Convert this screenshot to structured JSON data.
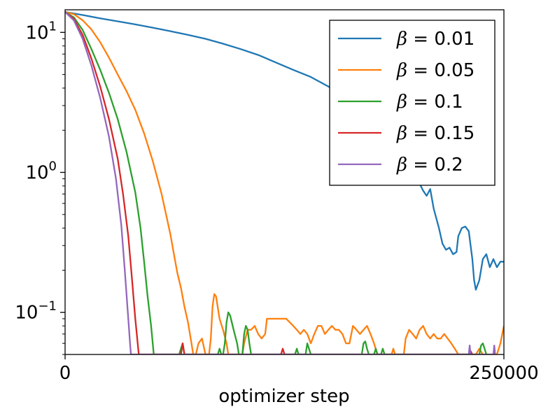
{
  "chart_data": {
    "type": "line",
    "title": "",
    "xlabel": "optimizer step",
    "ylabel": "",
    "xlim": [
      0,
      250000
    ],
    "ylim": [
      0.05,
      14.5
    ],
    "yscale": "log",
    "grid": false,
    "legend_position": "top-right",
    "x_ticks": [
      {
        "value": 0,
        "label": "0"
      },
      {
        "value": 250000,
        "label": "250000"
      }
    ],
    "y_ticks": [
      {
        "value": 10,
        "base": "10",
        "exp": "1"
      },
      {
        "value": 1,
        "base": "10",
        "exp": "0"
      },
      {
        "value": 0.1,
        "base": "10",
        "exp": "−1"
      }
    ],
    "series": [
      {
        "name": "β = 0.01",
        "symbol": "β",
        "eq": " = 0.01",
        "color": "#1f77b4",
        "points": [
          [
            0,
            14.0
          ],
          [
            10000,
            13.3
          ],
          [
            20000,
            12.6
          ],
          [
            30000,
            12.0
          ],
          [
            40000,
            11.4
          ],
          [
            50000,
            10.8
          ],
          [
            60000,
            10.2
          ],
          [
            70000,
            9.6
          ],
          [
            80000,
            9.0
          ],
          [
            90000,
            8.3
          ],
          [
            100000,
            7.6
          ],
          [
            110000,
            6.9
          ],
          [
            120000,
            6.1
          ],
          [
            130000,
            5.4
          ],
          [
            140000,
            4.8
          ],
          [
            150000,
            4.1
          ],
          [
            160000,
            3.5
          ],
          [
            170000,
            3.0
          ],
          [
            175000,
            2.7
          ],
          [
            180000,
            2.5
          ],
          [
            185000,
            2.2
          ],
          [
            190000,
            1.9
          ],
          [
            195000,
            1.4
          ],
          [
            198000,
            1.0
          ],
          [
            201000,
            0.88
          ],
          [
            204000,
            0.74
          ],
          [
            206000,
            0.68
          ],
          [
            208000,
            0.76
          ],
          [
            210000,
            0.55
          ],
          [
            213000,
            0.4
          ],
          [
            215000,
            0.31
          ],
          [
            217000,
            0.28
          ],
          [
            219000,
            0.29
          ],
          [
            221000,
            0.26
          ],
          [
            223000,
            0.27
          ],
          [
            224000,
            0.35
          ],
          [
            226000,
            0.4
          ],
          [
            228000,
            0.41
          ],
          [
            230000,
            0.38
          ],
          [
            232000,
            0.24
          ],
          [
            233000,
            0.17
          ],
          [
            234000,
            0.145
          ],
          [
            236000,
            0.17
          ],
          [
            238000,
            0.24
          ],
          [
            240000,
            0.26
          ],
          [
            242000,
            0.21
          ],
          [
            244000,
            0.24
          ],
          [
            246000,
            0.21
          ],
          [
            248000,
            0.23
          ],
          [
            250000,
            0.23
          ]
        ]
      },
      {
        "name": "β = 0.05",
        "symbol": "β",
        "eq": " = 0.05",
        "color": "#ff7f0e",
        "points": [
          [
            0,
            14.0
          ],
          [
            5000,
            13.5
          ],
          [
            10000,
            12.2
          ],
          [
            15000,
            10.5
          ],
          [
            20000,
            8.5
          ],
          [
            25000,
            6.6
          ],
          [
            30000,
            5.0
          ],
          [
            35000,
            3.8
          ],
          [
            40000,
            2.8
          ],
          [
            45000,
            1.9
          ],
          [
            50000,
            1.2
          ],
          [
            55000,
            0.7
          ],
          [
            60000,
            0.36
          ],
          [
            62000,
            0.26
          ],
          [
            64000,
            0.19
          ],
          [
            66000,
            0.15
          ],
          [
            68000,
            0.11
          ],
          [
            70000,
            0.085
          ],
          [
            72000,
            0.06
          ],
          [
            73000,
            0.05
          ],
          [
            74500,
            0.05
          ],
          [
            76000,
            0.06
          ],
          [
            78000,
            0.065
          ],
          [
            80000,
            0.05
          ],
          [
            81000,
            0.05
          ],
          [
            82000,
            0.05
          ],
          [
            83000,
            0.065
          ],
          [
            84000,
            0.11
          ],
          [
            85000,
            0.135
          ],
          [
            86000,
            0.13
          ],
          [
            88000,
            0.09
          ],
          [
            90000,
            0.075
          ],
          [
            92000,
            0.06
          ],
          [
            93000,
            0.05
          ],
          [
            101000,
            0.05
          ],
          [
            102000,
            0.06
          ],
          [
            104000,
            0.075
          ],
          [
            106000,
            0.075
          ],
          [
            108000,
            0.08
          ],
          [
            110000,
            0.07
          ],
          [
            112000,
            0.065
          ],
          [
            114000,
            0.07
          ],
          [
            115000,
            0.09
          ],
          [
            118000,
            0.09
          ],
          [
            122000,
            0.09
          ],
          [
            126000,
            0.09
          ],
          [
            128000,
            0.085
          ],
          [
            130000,
            0.08
          ],
          [
            132000,
            0.075
          ],
          [
            134000,
            0.07
          ],
          [
            136000,
            0.075
          ],
          [
            138000,
            0.07
          ],
          [
            140000,
            0.06
          ],
          [
            142000,
            0.07
          ],
          [
            144000,
            0.08
          ],
          [
            146000,
            0.08
          ],
          [
            148000,
            0.07
          ],
          [
            150000,
            0.075
          ],
          [
            152000,
            0.08
          ],
          [
            154000,
            0.075
          ],
          [
            156000,
            0.075
          ],
          [
            158000,
            0.07
          ],
          [
            160000,
            0.06
          ],
          [
            162000,
            0.06
          ],
          [
            164000,
            0.08
          ],
          [
            166000,
            0.075
          ],
          [
            168000,
            0.07
          ],
          [
            170000,
            0.075
          ],
          [
            172000,
            0.08
          ],
          [
            174000,
            0.07
          ],
          [
            176000,
            0.06
          ],
          [
            178000,
            0.05
          ],
          [
            186000,
            0.05
          ],
          [
            187000,
            0.055
          ],
          [
            188000,
            0.05
          ],
          [
            193000,
            0.05
          ],
          [
            194000,
            0.065
          ],
          [
            196000,
            0.075
          ],
          [
            198000,
            0.07
          ],
          [
            200000,
            0.065
          ],
          [
            202000,
            0.075
          ],
          [
            204000,
            0.08
          ],
          [
            206000,
            0.07
          ],
          [
            208000,
            0.065
          ],
          [
            210000,
            0.07
          ],
          [
            212000,
            0.065
          ],
          [
            214000,
            0.065
          ],
          [
            216000,
            0.07
          ],
          [
            218000,
            0.065
          ],
          [
            220000,
            0.06
          ],
          [
            222000,
            0.055
          ],
          [
            224000,
            0.05
          ],
          [
            234000,
            0.05
          ],
          [
            236000,
            0.055
          ],
          [
            238000,
            0.05
          ],
          [
            246000,
            0.05
          ],
          [
            248000,
            0.06
          ],
          [
            250000,
            0.08
          ]
        ]
      },
      {
        "name": "β = 0.1",
        "symbol": "β",
        "eq": " = 0.1",
        "color": "#2ca02c",
        "points": [
          [
            0,
            14.0
          ],
          [
            5000,
            12.8
          ],
          [
            10000,
            10.4
          ],
          [
            15000,
            7.6
          ],
          [
            20000,
            5.4
          ],
          [
            25000,
            3.7
          ],
          [
            30000,
            2.4
          ],
          [
            35000,
            1.4
          ],
          [
            40000,
            0.72
          ],
          [
            43000,
            0.4
          ],
          [
            45000,
            0.23
          ],
          [
            47000,
            0.13
          ],
          [
            49000,
            0.08
          ],
          [
            50500,
            0.05
          ],
          [
            65000,
            0.05
          ],
          [
            66000,
            0.055
          ],
          [
            67000,
            0.06
          ],
          [
            68000,
            0.05
          ],
          [
            87000,
            0.05
          ],
          [
            88000,
            0.055
          ],
          [
            89000,
            0.05
          ],
          [
            90000,
            0.05
          ],
          [
            91000,
            0.06
          ],
          [
            92000,
            0.085
          ],
          [
            93000,
            0.1
          ],
          [
            94000,
            0.095
          ],
          [
            96000,
            0.075
          ],
          [
            98000,
            0.06
          ],
          [
            99000,
            0.05
          ],
          [
            101000,
            0.05
          ],
          [
            102000,
            0.07
          ],
          [
            103000,
            0.08
          ],
          [
            104000,
            0.075
          ],
          [
            105000,
            0.06
          ],
          [
            106000,
            0.05
          ],
          [
            131000,
            0.05
          ],
          [
            132000,
            0.055
          ],
          [
            133000,
            0.05
          ],
          [
            137000,
            0.05
          ],
          [
            138000,
            0.06
          ],
          [
            140000,
            0.05
          ],
          [
            169000,
            0.05
          ],
          [
            170000,
            0.06
          ],
          [
            171000,
            0.062
          ],
          [
            172000,
            0.055
          ],
          [
            173000,
            0.05
          ],
          [
            176000,
            0.05
          ],
          [
            177000,
            0.055
          ],
          [
            178000,
            0.05
          ],
          [
            180000,
            0.05
          ],
          [
            181000,
            0.055
          ],
          [
            182000,
            0.05
          ],
          [
            236000,
            0.05
          ],
          [
            237000,
            0.058
          ],
          [
            238000,
            0.06
          ],
          [
            239000,
            0.055
          ],
          [
            240000,
            0.05
          ]
        ]
      },
      {
        "name": "β = 0.15",
        "symbol": "β",
        "eq": " = 0.15",
        "color": "#d62728",
        "points": [
          [
            0,
            14.0
          ],
          [
            5000,
            12.5
          ],
          [
            10000,
            9.6
          ],
          [
            15000,
            6.5
          ],
          [
            20000,
            4.1
          ],
          [
            25000,
            2.4
          ],
          [
            30000,
            1.25
          ],
          [
            33000,
            0.7
          ],
          [
            36000,
            0.35
          ],
          [
            38000,
            0.18
          ],
          [
            40000,
            0.09
          ],
          [
            42000,
            0.05
          ],
          [
            66000,
            0.05
          ],
          [
            67000,
            0.06
          ],
          [
            68000,
            0.05
          ],
          [
            123000,
            0.05
          ],
          [
            124000,
            0.055
          ],
          [
            125000,
            0.05
          ],
          [
            230000,
            0.05
          ],
          [
            231000,
            0.053
          ],
          [
            232000,
            0.05
          ]
        ]
      },
      {
        "name": "β = 0.2",
        "symbol": "β",
        "eq": " = 0.2",
        "color": "#9467bd",
        "points": [
          [
            0,
            14.0
          ],
          [
            5000,
            12.2
          ],
          [
            10000,
            9.0
          ],
          [
            15000,
            5.8
          ],
          [
            20000,
            3.4
          ],
          [
            25000,
            1.8
          ],
          [
            29000,
            0.9
          ],
          [
            32000,
            0.42
          ],
          [
            34000,
            0.2
          ],
          [
            36000,
            0.09
          ],
          [
            37000,
            0.06
          ],
          [
            37500,
            0.05
          ],
          [
            230000,
            0.05
          ],
          [
            230500,
            0.058
          ],
          [
            231000,
            0.05
          ],
          [
            244000,
            0.05
          ],
          [
            244500,
            0.058
          ],
          [
            245000,
            0.05
          ]
        ]
      }
    ]
  }
}
